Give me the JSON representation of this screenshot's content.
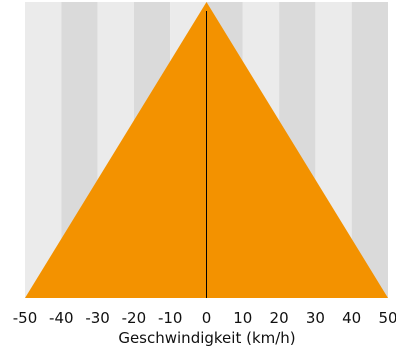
{
  "chart_data": {
    "type": "area",
    "title": "",
    "xlabel": "Geschwindigkeit (km/h)",
    "ylabel": "",
    "xlim": [
      -50,
      50
    ],
    "ylim": [
      0,
      1
    ],
    "x_ticks": [
      -50,
      -40,
      -30,
      -20,
      -10,
      0,
      10,
      20,
      30,
      40,
      50
    ],
    "x_tick_labels": [
      "-50",
      "-40",
      "-30",
      "-20",
      "-10",
      "0",
      "10",
      "20",
      "30",
      "40",
      "50"
    ],
    "series": [
      {
        "x": [
          -50,
          0,
          50
        ],
        "y": [
          0,
          1,
          0
        ]
      }
    ],
    "grid": true,
    "legend": "none",
    "colors": {
      "fill": "#F39200",
      "band_light": "#EBEBEB",
      "band_dark": "#DADADA",
      "zero_line": "#000000"
    }
  }
}
